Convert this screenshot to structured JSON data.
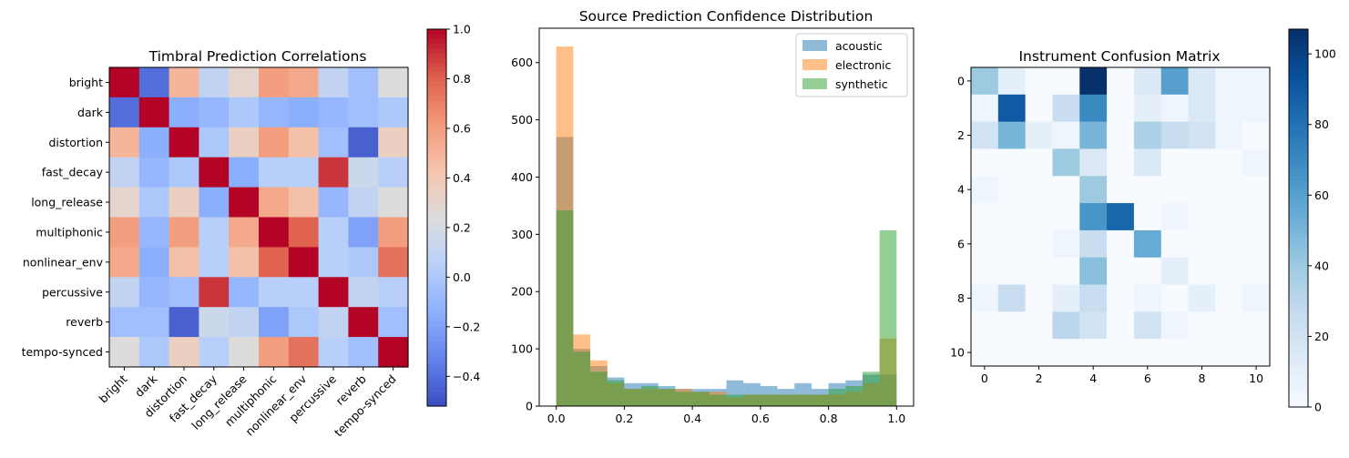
{
  "chart_data": [
    {
      "type": "heatmap",
      "title": "Timbral Prediction Correlations",
      "labels": [
        "bright",
        "dark",
        "distortion",
        "fast_decay",
        "long_release",
        "multiphonic",
        "nonlinear_env",
        "percussive",
        "reverb",
        "tempo-synced"
      ],
      "matrix": [
        [
          1.0,
          -0.4,
          0.5,
          0.1,
          0.3,
          0.6,
          0.55,
          0.1,
          -0.05,
          0.25
        ],
        [
          -0.4,
          1.0,
          -0.15,
          -0.1,
          0.0,
          -0.1,
          -0.15,
          -0.1,
          -0.05,
          0.0
        ],
        [
          0.5,
          -0.15,
          1.0,
          0.0,
          0.35,
          0.6,
          0.45,
          -0.05,
          -0.45,
          0.35
        ],
        [
          0.1,
          -0.1,
          0.0,
          1.0,
          -0.15,
          0.05,
          0.05,
          0.9,
          0.15,
          0.05
        ],
        [
          0.3,
          0.0,
          0.35,
          -0.15,
          1.0,
          0.55,
          0.45,
          -0.1,
          0.1,
          0.25
        ],
        [
          0.6,
          -0.1,
          0.6,
          0.05,
          0.55,
          1.0,
          0.8,
          0.05,
          -0.2,
          0.6
        ],
        [
          0.55,
          -0.15,
          0.45,
          0.05,
          0.45,
          0.8,
          1.0,
          0.05,
          0.0,
          0.75
        ],
        [
          0.1,
          -0.1,
          -0.05,
          0.9,
          -0.1,
          0.05,
          0.05,
          1.0,
          0.1,
          0.05
        ],
        [
          -0.05,
          -0.05,
          -0.45,
          0.15,
          0.1,
          -0.2,
          0.0,
          0.1,
          1.0,
          -0.05
        ],
        [
          0.25,
          0.0,
          0.35,
          0.05,
          0.25,
          0.6,
          0.75,
          0.05,
          -0.05,
          1.0
        ]
      ],
      "vmin": -0.52,
      "vmax": 1.0,
      "colormap": "coolwarm",
      "colorbar_ticks": [
        1.0,
        0.8,
        0.6,
        0.4,
        0.2,
        0.0,
        -0.2,
        -0.4
      ],
      "colorbar_tick_labels": [
        "1.0",
        "0.8",
        "0.6",
        "0.4",
        "0.2",
        "0.0",
        "−0.2",
        "−0.4"
      ]
    },
    {
      "type": "histogram",
      "title": "Source Prediction Confidence Distribution",
      "bin_edges": [
        0,
        0.05,
        0.1,
        0.15,
        0.2,
        0.25,
        0.3,
        0.35,
        0.4,
        0.45,
        0.5,
        0.55,
        0.6,
        0.65,
        0.7,
        0.75,
        0.8,
        0.85,
        0.9,
        0.95,
        1.0
      ],
      "series": [
        {
          "name": "acoustic",
          "color": "#1f77b4",
          "values": [
            470,
            100,
            70,
            50,
            40,
            40,
            35,
            30,
            30,
            30,
            45,
            40,
            35,
            30,
            40,
            30,
            40,
            45,
            55,
            55
          ]
        },
        {
          "name": "electronic",
          "color": "#ff7f0e",
          "values": [
            628,
            125,
            80,
            40,
            30,
            30,
            30,
            30,
            25,
            25,
            15,
            20,
            20,
            20,
            20,
            20,
            20,
            25,
            40,
            118
          ]
        },
        {
          "name": "synthetic",
          "color": "#2ca02c",
          "values": [
            342,
            95,
            60,
            45,
            30,
            35,
            30,
            25,
            25,
            20,
            20,
            20,
            20,
            20,
            20,
            20,
            30,
            35,
            60,
            307
          ]
        }
      ],
      "alpha": 0.5,
      "xlim": [
        -0.05,
        1.05
      ],
      "ylim": [
        0,
        660
      ],
      "x_ticks": [
        0.0,
        0.2,
        0.4,
        0.6,
        0.8,
        1.0
      ],
      "x_tick_labels": [
        "0.0",
        "0.2",
        "0.4",
        "0.6",
        "0.8",
        "1.0"
      ],
      "y_ticks": [
        0,
        100,
        200,
        300,
        400,
        500,
        600
      ],
      "y_tick_labels": [
        "0",
        "100",
        "200",
        "300",
        "400",
        "500",
        "600"
      ],
      "legend_position": "top-right"
    },
    {
      "type": "heatmap",
      "title": "Instrument Confusion Matrix",
      "matrix": [
        [
          40,
          10,
          0,
          0,
          107,
          0,
          15,
          60,
          15,
          5,
          5
        ],
        [
          5,
          90,
          0,
          25,
          70,
          0,
          10,
          5,
          15,
          5,
          5
        ],
        [
          20,
          50,
          10,
          5,
          50,
          0,
          35,
          25,
          20,
          5,
          0
        ],
        [
          0,
          0,
          0,
          40,
          15,
          0,
          15,
          0,
          0,
          0,
          5
        ],
        [
          5,
          0,
          0,
          0,
          40,
          0,
          0,
          0,
          0,
          0,
          0
        ],
        [
          0,
          0,
          0,
          0,
          65,
          85,
          0,
          5,
          0,
          0,
          0
        ],
        [
          0,
          0,
          0,
          5,
          25,
          0,
          55,
          0,
          0,
          0,
          0
        ],
        [
          0,
          0,
          0,
          0,
          45,
          0,
          0,
          10,
          0,
          0,
          0
        ],
        [
          5,
          25,
          0,
          10,
          25,
          0,
          5,
          0,
          10,
          0,
          5
        ],
        [
          0,
          0,
          0,
          30,
          20,
          0,
          20,
          5,
          0,
          0,
          0
        ],
        [
          0,
          0,
          0,
          0,
          0,
          0,
          0,
          0,
          0,
          0,
          0
        ]
      ],
      "vmin": 0,
      "vmax": 107,
      "colormap": "Blues",
      "axis_ticks": [
        0,
        2,
        4,
        6,
        8,
        10
      ],
      "axis_tick_labels": [
        "0",
        "2",
        "4",
        "6",
        "8",
        "10"
      ],
      "colorbar_ticks": [
        0,
        20,
        40,
        60,
        80,
        100
      ],
      "colorbar_tick_labels": [
        "0",
        "20",
        "40",
        "60",
        "80",
        "100"
      ]
    }
  ]
}
